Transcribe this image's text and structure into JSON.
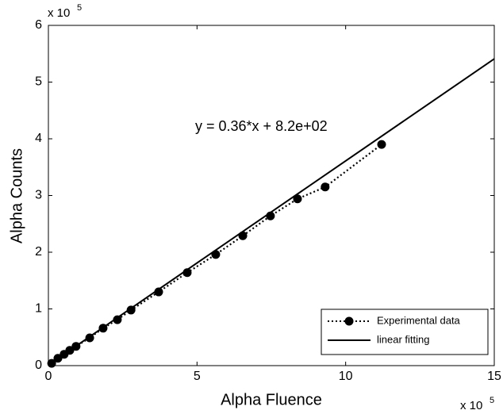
{
  "chart_data": {
    "type": "line",
    "x_label": "Alpha Fluence",
    "y_label": "Alpha Counts",
    "x_exponent": {
      "base": "x 10",
      "power": "5"
    },
    "y_exponent": {
      "base": "x 10",
      "power": "5"
    },
    "annotation": "y = 0.36*x + 8.2e+02",
    "xlim": [
      0,
      15
    ],
    "ylim": [
      0,
      6
    ],
    "xticks": [
      0,
      5,
      10,
      15
    ],
    "yticks": [
      0,
      1,
      2,
      3,
      4,
      5,
      6
    ],
    "grid": false,
    "legend": "lower right",
    "series": [
      {
        "name": "Experimental data",
        "color": "#000000",
        "dash": "dotted",
        "marker": "circle",
        "x": [
          0.11,
          0.32,
          0.53,
          0.72,
          0.93,
          1.39,
          1.84,
          2.32,
          2.78,
          3.71,
          4.67,
          5.63,
          6.54,
          7.47,
          8.38,
          9.31,
          11.21
        ],
        "values": [
          0.04,
          0.13,
          0.2,
          0.27,
          0.34,
          0.49,
          0.66,
          0.81,
          0.98,
          1.3,
          1.64,
          1.96,
          2.29,
          2.64,
          2.94,
          3.15,
          3.9
        ]
      },
      {
        "name": "linear fitting",
        "color": "#000000",
        "dash": "solid",
        "marker": "none",
        "x": [
          0,
          15
        ],
        "values": [
          0.01,
          5.41
        ]
      }
    ]
  }
}
